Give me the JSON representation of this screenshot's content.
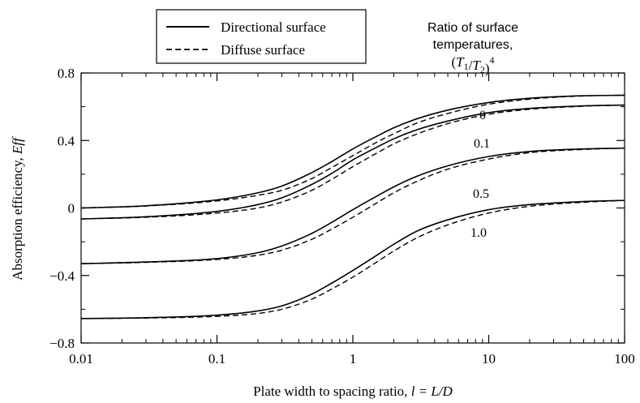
{
  "chart_data": {
    "type": "line",
    "xlabel": "Plate width to spacing ratio, l = L/D",
    "ylabel": "Absorption efficiency, Eff",
    "xscale": "log",
    "xlim": [
      0.01,
      100
    ],
    "ylim": [
      -0.8,
      0.8
    ],
    "x_ticks": [
      0.01,
      0.1,
      1,
      10,
      100
    ],
    "x_tick_labels": [
      "0.01",
      "0.1",
      "1",
      "10",
      "100"
    ],
    "y_ticks": [
      -0.8,
      -0.4,
      0,
      0.4,
      0.8
    ],
    "y_tick_labels": [
      "−0.8",
      "−0.4",
      "0",
      "0.4",
      "0.8"
    ],
    "grid": false,
    "legend": {
      "placement": "top-left",
      "entries": [
        {
          "label": "Directional surface",
          "style": "solid"
        },
        {
          "label": "Diffuse surface",
          "style": "dashed"
        }
      ]
    },
    "annotation_title": [
      "Ratio of surface",
      "temperatures,",
      "(T1/T2)4"
    ],
    "x": [
      0.01,
      0.03,
      0.1,
      0.2,
      0.3,
      0.5,
      0.7,
      1,
      1.5,
      2,
      3,
      5,
      10,
      20,
      50,
      100
    ],
    "series": [
      {
        "ratio": "0",
        "style": "solid",
        "values": [
          0.0,
          0.013,
          0.048,
          0.09,
          0.13,
          0.21,
          0.275,
          0.35,
          0.425,
          0.475,
          0.53,
          0.58,
          0.625,
          0.65,
          0.665,
          0.668
        ]
      },
      {
        "ratio": "0",
        "style": "dashed",
        "values": [
          0.0,
          0.012,
          0.042,
          0.075,
          0.105,
          0.175,
          0.24,
          0.31,
          0.39,
          0.44,
          0.505,
          0.56,
          0.615,
          0.645,
          0.664,
          0.668
        ]
      },
      {
        "ratio": "0.1",
        "style": "solid",
        "values": [
          -0.065,
          -0.052,
          -0.02,
          0.02,
          0.06,
          0.14,
          0.205,
          0.285,
          0.36,
          0.41,
          0.465,
          0.515,
          0.565,
          0.59,
          0.605,
          0.61
        ]
      },
      {
        "ratio": "0.1",
        "style": "dashed",
        "values": [
          -0.065,
          -0.055,
          -0.03,
          0.0,
          0.035,
          0.105,
          0.17,
          0.245,
          0.325,
          0.38,
          0.44,
          0.5,
          0.555,
          0.585,
          0.603,
          0.61
        ]
      },
      {
        "ratio": "0.5",
        "style": "solid",
        "values": [
          -0.33,
          -0.32,
          -0.3,
          -0.265,
          -0.225,
          -0.15,
          -0.085,
          -0.01,
          0.07,
          0.125,
          0.19,
          0.25,
          0.305,
          0.335,
          0.35,
          0.355
        ]
      },
      {
        "ratio": "0.5",
        "style": "dashed",
        "values": [
          -0.33,
          -0.322,
          -0.305,
          -0.28,
          -0.25,
          -0.185,
          -0.125,
          -0.055,
          0.03,
          0.09,
          0.16,
          0.23,
          0.29,
          0.328,
          0.347,
          0.355
        ]
      },
      {
        "ratio": "1.0",
        "style": "solid",
        "values": [
          -0.655,
          -0.65,
          -0.635,
          -0.61,
          -0.58,
          -0.51,
          -0.445,
          -0.37,
          -0.28,
          -0.215,
          -0.135,
          -0.07,
          -0.01,
          0.02,
          0.038,
          0.045
        ]
      },
      {
        "ratio": "1.0",
        "style": "dashed",
        "values": [
          -0.655,
          -0.652,
          -0.642,
          -0.625,
          -0.6,
          -0.54,
          -0.48,
          -0.41,
          -0.32,
          -0.255,
          -0.175,
          -0.1,
          -0.03,
          0.01,
          0.034,
          0.045
        ]
      }
    ]
  }
}
